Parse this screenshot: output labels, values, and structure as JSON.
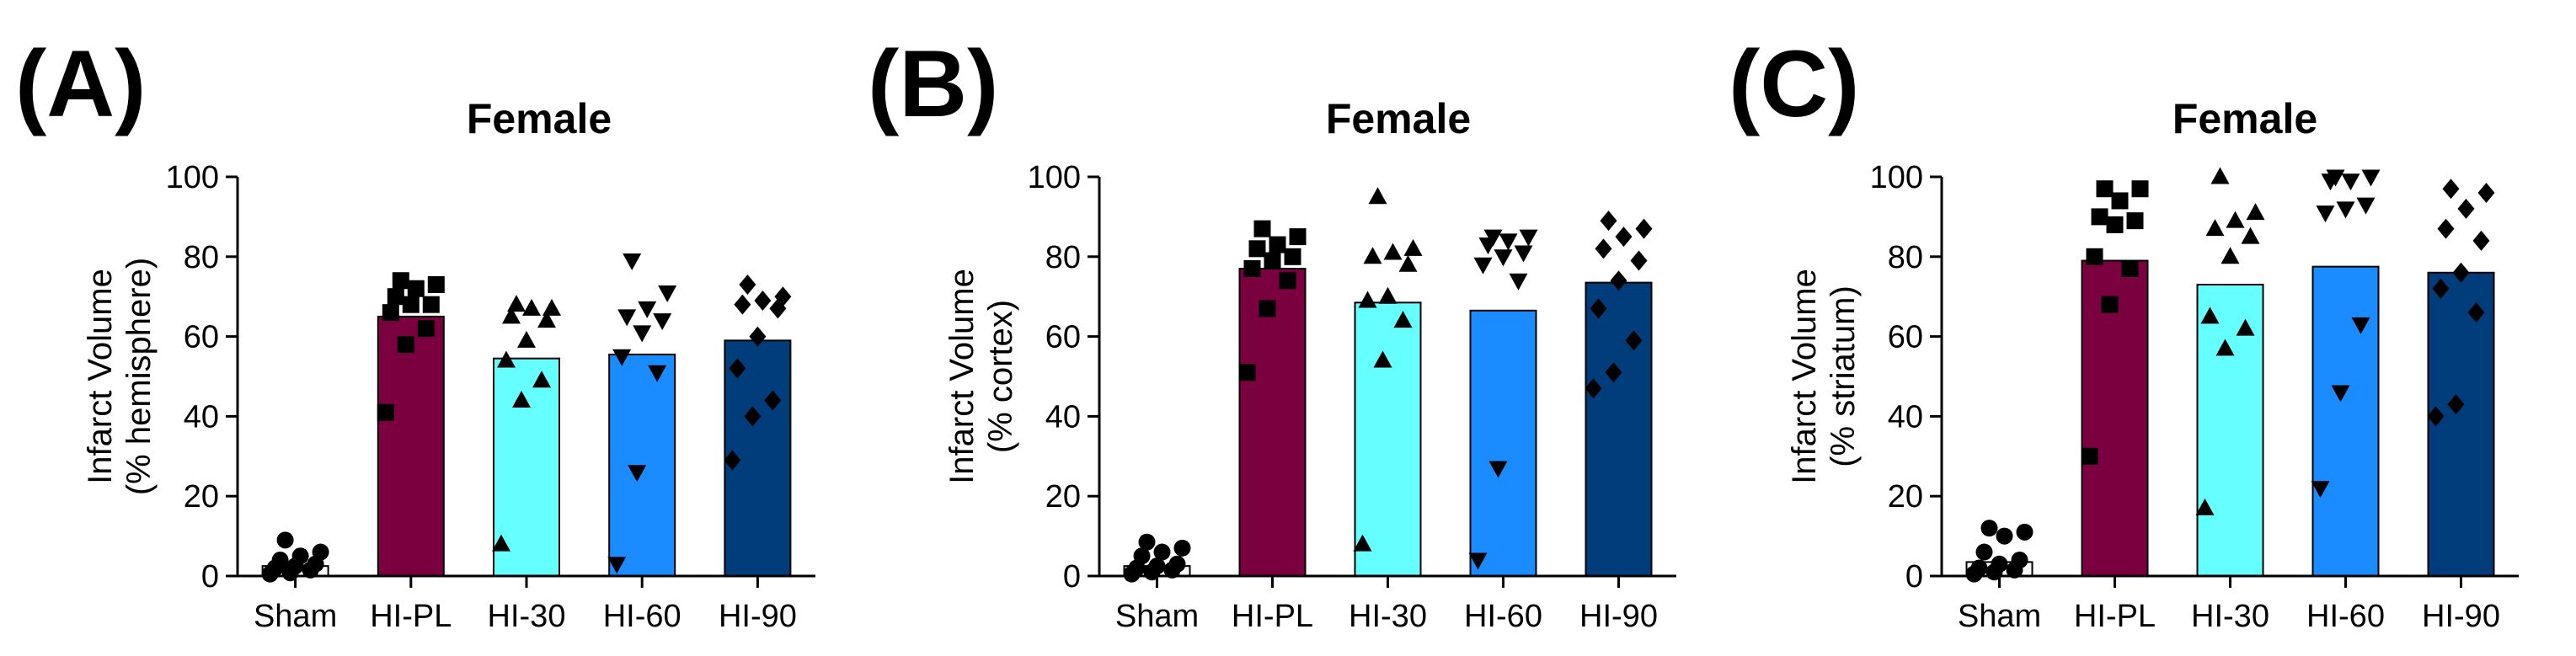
{
  "colors": {
    "Sham": "#ffffff",
    "HI-PL": "#7a0040",
    "HI-30": "#66ffff",
    "HI-60": "#1a8cff",
    "HI-90": "#003d7a",
    "marker": "#000000",
    "axis": "#000000"
  },
  "chart_data": [
    {
      "type": "bar",
      "panel_label": "(A)",
      "title": "Female",
      "ylabel_line1": "Infarct Volume",
      "ylabel_line2": "(% hemisphere)",
      "ylim": [
        0,
        100
      ],
      "yticks": [
        0,
        20,
        40,
        60,
        80,
        100
      ],
      "categories": [
        "Sham",
        "HI-PL",
        "HI-30",
        "HI-60",
        "HI-90"
      ],
      "values": [
        2.5,
        65,
        54.5,
        55.5,
        59
      ],
      "markers": [
        "circle",
        "square",
        "triangle-up",
        "triangle-down",
        "diamond"
      ],
      "points": [
        [
          0.5,
          0.8,
          1.5,
          2.0,
          2.5,
          3.0,
          4.0,
          5.0,
          6.0,
          9.0
        ],
        [
          41,
          58,
          62,
          66,
          68,
          68,
          70,
          72,
          73,
          74
        ],
        [
          8,
          44,
          49,
          54,
          59,
          64,
          65,
          67,
          67,
          68
        ],
        [
          3,
          26,
          51,
          55,
          61,
          64,
          65,
          67,
          71,
          79
        ],
        [
          29,
          40,
          44,
          52,
          60,
          67,
          68,
          69,
          70,
          73
        ]
      ]
    },
    {
      "type": "bar",
      "panel_label": "(B)",
      "title": "Female",
      "ylabel_line1": "Infarct Volume",
      "ylabel_line2": "(% cortex)",
      "ylim": [
        0,
        100
      ],
      "yticks": [
        0,
        20,
        40,
        60,
        80,
        100
      ],
      "categories": [
        "Sham",
        "HI-PL",
        "HI-30",
        "HI-60",
        "HI-90"
      ],
      "values": [
        2.5,
        77,
        68.5,
        66.5,
        73.5
      ],
      "markers": [
        "circle",
        "square",
        "triangle-up",
        "triangle-down",
        "diamond"
      ],
      "points": [
        [
          0.5,
          1.0,
          1.5,
          2.0,
          2.5,
          3.0,
          5.0,
          6.0,
          7.0,
          8.5
        ],
        [
          51,
          67,
          74,
          77,
          79,
          80,
          82,
          83,
          85,
          87
        ],
        [
          8,
          54,
          64,
          69,
          70,
          78,
          80,
          81,
          82,
          95
        ],
        [
          4,
          27,
          74,
          78,
          80,
          81,
          83,
          84,
          85,
          85
        ],
        [
          47,
          51,
          59,
          67,
          74,
          79,
          82,
          85,
          87,
          89
        ]
      ]
    },
    {
      "type": "bar",
      "panel_label": "(C)",
      "title": "Female",
      "ylabel_line1": "Infarct Volume",
      "ylabel_line2": "(% striatum)",
      "ylim": [
        0,
        100
      ],
      "yticks": [
        0,
        20,
        40,
        60,
        80,
        100
      ],
      "categories": [
        "Sham",
        "HI-PL",
        "HI-30",
        "HI-60",
        "HI-90"
      ],
      "values": [
        3.5,
        79,
        73,
        77.5,
        76
      ],
      "markers": [
        "circle",
        "square",
        "triangle-up",
        "triangle-down",
        "diamond"
      ],
      "points": [
        [
          0.5,
          1.0,
          1.5,
          2.0,
          3.0,
          4.0,
          6.0,
          10.0,
          11.0,
          12.0
        ],
        [
          30,
          68,
          77,
          80,
          88,
          89,
          90,
          94,
          97,
          97
        ],
        [
          17,
          57,
          62,
          65,
          80,
          85,
          87,
          89,
          91,
          100
        ],
        [
          22,
          46,
          63,
          91,
          92,
          93,
          99,
          99,
          100,
          100
        ],
        [
          40,
          43,
          66,
          72,
          76,
          84,
          87,
          92,
          96,
          97
        ]
      ]
    }
  ]
}
